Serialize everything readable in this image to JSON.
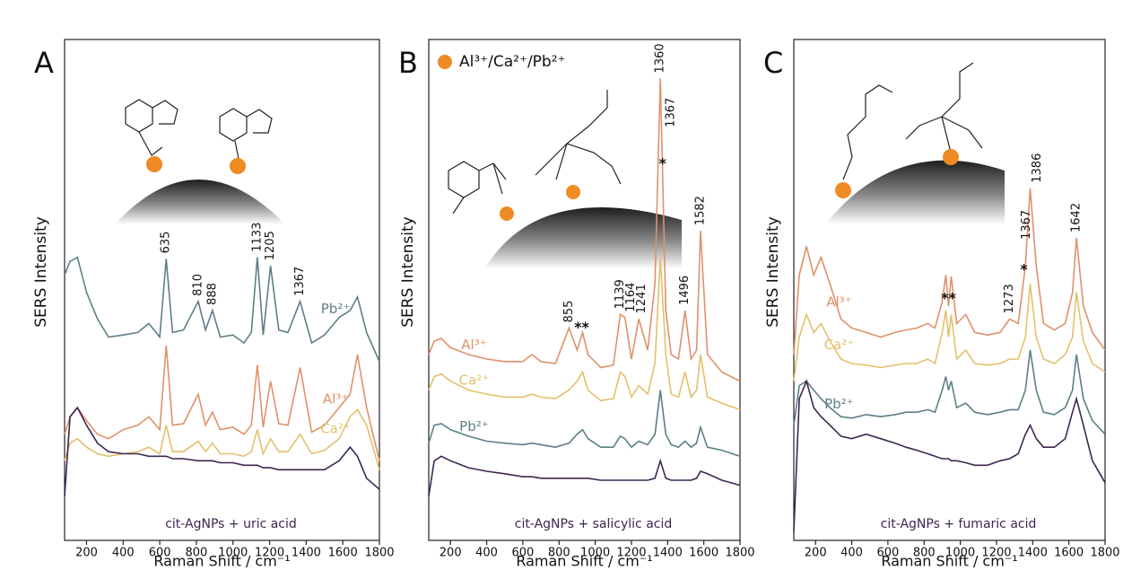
{
  "chart_data": [
    {
      "type": "line",
      "panel_label": "A",
      "xlabel": "Raman Shift / cm⁻¹",
      "ylabel": "SERS Intensity",
      "xlim": [
        80,
        1800
      ],
      "xticks": [
        200,
        400,
        600,
        800,
        1000,
        1200,
        1400,
        1600,
        1800
      ],
      "ylim": [
        0,
        100
      ],
      "x": [
        80,
        110,
        150,
        200,
        260,
        320,
        400,
        480,
        540,
        600,
        635,
        670,
        730,
        810,
        850,
        888,
        930,
        1000,
        1060,
        1100,
        1133,
        1165,
        1205,
        1250,
        1300,
        1367,
        1430,
        1500,
        1580,
        1640,
        1680,
        1730,
        1800
      ],
      "series": [
        {
          "name": "Pb²⁺",
          "color": "#5b7f86",
          "values": [
            53.0,
            55.7,
            56.5,
            49.5,
            44.2,
            40.6,
            41.0,
            41.5,
            43.3,
            40.6,
            56.2,
            41.5,
            42.0,
            47.7,
            42.0,
            45.9,
            40.6,
            41.0,
            39.4,
            41.5,
            56.5,
            41.0,
            54.8,
            42.0,
            41.5,
            47.7,
            39.4,
            41.0,
            44.5,
            45.9,
            48.6,
            41.5,
            35.7
          ]
        },
        {
          "name": "Al³⁺",
          "color": "#e0916a",
          "values": [
            21.2,
            24.7,
            26.5,
            23.9,
            21.2,
            20.3,
            22.1,
            23.0,
            24.7,
            22.1,
            38.9,
            23.0,
            23.3,
            29.2,
            23.0,
            25.6,
            22.1,
            22.6,
            21.2,
            23.0,
            35.0,
            22.6,
            31.8,
            23.3,
            23.0,
            34.5,
            21.6,
            23.0,
            26.5,
            29.2,
            37.1,
            26.5,
            15.9
          ]
        },
        {
          "name": "Ca²⁺",
          "color": "#e3c06c",
          "values": [
            15.9,
            19.4,
            20.3,
            18.6,
            17.3,
            16.8,
            17.3,
            17.7,
            18.6,
            17.3,
            23.0,
            17.7,
            17.7,
            19.8,
            17.7,
            19.4,
            17.3,
            17.3,
            16.8,
            17.7,
            22.1,
            17.3,
            20.3,
            17.7,
            17.7,
            21.2,
            17.3,
            18.0,
            20.3,
            24.7,
            26.1,
            23.0,
            14.1
          ]
        },
        {
          "name": "cit-AgNPs + uric acid",
          "color": "#3d2650",
          "values": [
            8.8,
            24.7,
            26.5,
            23.0,
            19.4,
            17.7,
            17.3,
            17.3,
            16.8,
            16.8,
            16.8,
            16.3,
            16.3,
            15.9,
            15.9,
            15.9,
            15.5,
            15.5,
            15.0,
            15.0,
            15.0,
            14.5,
            14.5,
            14.1,
            14.1,
            14.1,
            14.1,
            14.1,
            15.9,
            18.6,
            16.8,
            12.4,
            10.2
          ]
        }
      ],
      "peak_labels": [
        635,
        810,
        888,
        1133,
        1205,
        1367
      ],
      "markers": []
    },
    {
      "type": "line",
      "panel_label": "B",
      "xlabel": "Raman Shift / cm⁻¹",
      "ylabel": "SERS Intensity",
      "xlim": [
        80,
        1800
      ],
      "xticks": [
        200,
        400,
        600,
        800,
        1000,
        1200,
        1400,
        1600,
        1800
      ],
      "ylim": [
        0,
        100
      ],
      "legend": {
        "text": "Al³⁺/Ca²⁺/Pb²⁺",
        "color": "#f08a24"
      },
      "x": [
        80,
        110,
        150,
        200,
        300,
        400,
        500,
        600,
        650,
        700,
        780,
        855,
        900,
        930,
        960,
        1030,
        1100,
        1139,
        1164,
        1200,
        1241,
        1290,
        1330,
        1360,
        1390,
        1420,
        1460,
        1496,
        1530,
        1560,
        1582,
        1620,
        1700,
        1800
      ],
      "series": [
        {
          "name": "Al³⁺",
          "color": "#e0916a",
          "values": [
            37.1,
            39.8,
            40.3,
            38.5,
            37.1,
            36.2,
            35.7,
            35.7,
            37.1,
            35.7,
            35.3,
            42.4,
            38.0,
            41.5,
            37.1,
            34.5,
            35.0,
            45.1,
            44.5,
            36.2,
            44.2,
            38.0,
            51.2,
            92.2,
            45.9,
            37.1,
            36.2,
            45.9,
            36.2,
            38.0,
            61.8,
            37.1,
            33.6,
            31.8
          ]
        },
        {
          "name": "Ca²⁺",
          "color": "#e3c06c",
          "values": [
            30.0,
            32.7,
            33.2,
            31.8,
            30.0,
            29.2,
            28.6,
            28.6,
            29.2,
            28.6,
            28.3,
            30.0,
            31.8,
            33.6,
            30.0,
            27.9,
            28.3,
            33.6,
            32.7,
            28.6,
            30.9,
            29.2,
            35.3,
            56.5,
            37.1,
            29.2,
            28.6,
            33.6,
            28.6,
            30.0,
            37.1,
            28.6,
            27.4,
            26.1
          ]
        },
        {
          "name": "Pb²⁺",
          "color": "#5b7f86",
          "values": [
            19.4,
            23.0,
            23.3,
            22.1,
            20.8,
            19.8,
            19.4,
            19.1,
            19.4,
            19.1,
            18.6,
            19.4,
            21.2,
            22.1,
            20.3,
            18.6,
            18.6,
            20.8,
            20.3,
            18.6,
            19.8,
            19.1,
            21.2,
            30.0,
            21.2,
            19.1,
            18.6,
            19.8,
            18.6,
            19.4,
            22.6,
            18.6,
            18.0,
            16.8
          ]
        },
        {
          "name": "cit-AgNPs + salicylic acid",
          "color": "#3d2650",
          "values": [
            8.8,
            15.9,
            16.8,
            15.9,
            14.5,
            13.8,
            13.3,
            12.7,
            12.7,
            12.4,
            12.4,
            12.4,
            12.4,
            12.4,
            12.4,
            12.0,
            12.0,
            12.0,
            12.0,
            12.0,
            12.0,
            12.0,
            12.4,
            15.9,
            12.4,
            12.0,
            12.0,
            12.0,
            12.0,
            12.4,
            13.8,
            13.3,
            12.0,
            11.0
          ]
        }
      ],
      "peak_labels": [
        855,
        1139,
        1164,
        1241,
        1360,
        1367,
        1496,
        1582
      ],
      "markers": [
        {
          "x": 925,
          "text": "**"
        },
        {
          "x": 1372,
          "text": "*"
        }
      ]
    },
    {
      "type": "line",
      "panel_label": "C",
      "xlabel": "Raman Shift / cm⁻¹",
      "ylabel": "SERS Intensity",
      "xlim": [
        80,
        1800
      ],
      "xticks": [
        200,
        400,
        600,
        800,
        1000,
        1200,
        1400,
        1600,
        1800
      ],
      "ylim": [
        0,
        100
      ],
      "x": [
        80,
        110,
        150,
        190,
        230,
        280,
        340,
        400,
        480,
        560,
        640,
        700,
        760,
        820,
        860,
        900,
        920,
        935,
        950,
        980,
        1030,
        1080,
        1150,
        1220,
        1273,
        1320,
        1360,
        1386,
        1420,
        1460,
        1520,
        1580,
        1620,
        1642,
        1680,
        1730,
        1800
      ],
      "series": [
        {
          "name": "Al³⁺",
          "color": "#e0916a",
          "values": [
            37.1,
            53.0,
            58.7,
            53.0,
            56.5,
            51.2,
            44.2,
            42.4,
            41.5,
            40.6,
            41.5,
            42.0,
            42.4,
            43.3,
            42.4,
            47.7,
            53.0,
            46.8,
            52.7,
            43.3,
            45.1,
            41.5,
            41.0,
            41.5,
            44.2,
            43.3,
            54.8,
            70.3,
            54.8,
            43.3,
            42.0,
            43.3,
            49.5,
            60.4,
            46.8,
            41.5,
            38.0
          ]
        },
        {
          "name": "Ca²⁺",
          "color": "#e3c06c",
          "values": [
            31.8,
            40.6,
            45.1,
            41.5,
            43.3,
            39.8,
            36.2,
            35.3,
            35.0,
            34.5,
            35.0,
            35.3,
            35.3,
            36.2,
            35.3,
            41.5,
            45.9,
            40.6,
            45.1,
            36.2,
            38.0,
            35.3,
            35.0,
            35.3,
            36.2,
            36.2,
            40.6,
            51.2,
            40.6,
            36.2,
            35.3,
            37.1,
            40.6,
            49.5,
            39.8,
            35.3,
            33.6
          ]
        },
        {
          "name": "Pb²⁺",
          "color": "#5b7f86",
          "values": [
            23.0,
            30.9,
            31.8,
            30.0,
            28.3,
            26.5,
            24.7,
            24.4,
            25.1,
            24.7,
            25.1,
            25.6,
            25.6,
            26.1,
            25.6,
            30.0,
            32.7,
            30.0,
            31.8,
            26.5,
            27.4,
            25.6,
            25.1,
            25.6,
            26.1,
            26.1,
            30.0,
            38.0,
            30.0,
            25.6,
            25.1,
            26.5,
            30.0,
            37.1,
            28.3,
            23.9,
            21.2
          ]
        },
        {
          "name": "cit-AgNPs + fumaric acid",
          "color": "#3d2650",
          "values": [
            1.8,
            28.3,
            31.8,
            26.5,
            24.7,
            23.0,
            20.8,
            20.3,
            21.2,
            20.3,
            19.4,
            18.6,
            18.0,
            17.3,
            16.8,
            16.3,
            16.3,
            16.3,
            15.9,
            15.9,
            15.5,
            15.0,
            15.0,
            15.9,
            16.3,
            17.3,
            21.2,
            23.0,
            20.3,
            18.6,
            18.6,
            20.3,
            25.6,
            28.3,
            23.0,
            15.9,
            11.5
          ]
        }
      ],
      "peak_labels": [
        1273,
        1367,
        1386,
        1642
      ],
      "markers": [
        {
          "x": 935,
          "text": "**"
        },
        {
          "x": 1352,
          "text": "*"
        }
      ]
    }
  ]
}
